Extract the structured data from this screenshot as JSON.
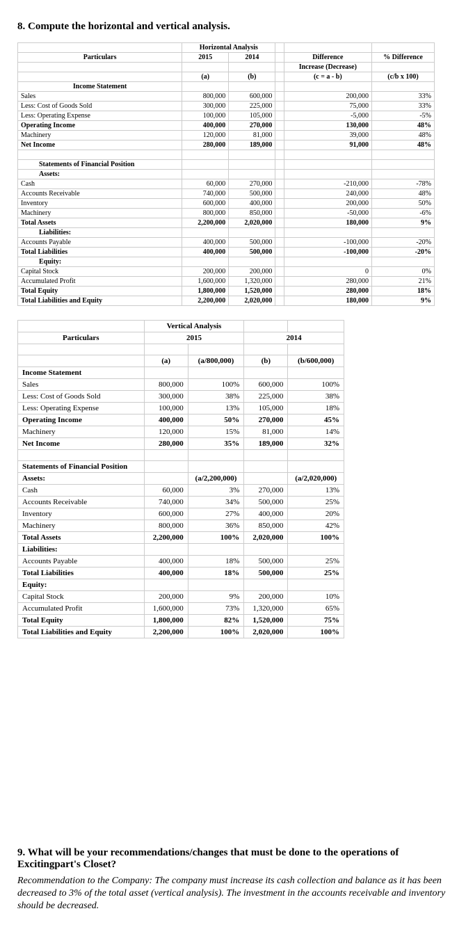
{
  "q8": {
    "title": "8. Compute the horizontal and vertical analysis.",
    "horizontal": {
      "headers": {
        "group": "Horizontal Analysis",
        "particulars": "Particulars",
        "y2015": "2015",
        "y2014": "2014",
        "diff": "Difference",
        "pctdiff": "% Difference",
        "incdec": "Increase (Decrease)",
        "a": "(a)",
        "b": "(b)",
        "cab": "(c = a - b)",
        "cb100": "(c/b x 100)"
      },
      "sections": {
        "income": "Income Statement",
        "sfp": "Statements of Financial Position",
        "assets": "Assets:",
        "liab": "Liabilities:",
        "equity": "Equity:"
      },
      "rows": [
        {
          "l": "Sales",
          "a": "800,000",
          "b": "600,000",
          "c": "200,000",
          "p": "33%"
        },
        {
          "l": "Less: Cost of Goods Sold",
          "a": "300,000",
          "b": "225,000",
          "c": "75,000",
          "p": "33%"
        },
        {
          "l": "Less: Operating Expense",
          "a": "100,000",
          "b": "105,000",
          "c": "-5,000",
          "p": "-5%"
        },
        {
          "l": "Operating Income",
          "a": "400,000",
          "b": "270,000",
          "c": "130,000",
          "p": "48%",
          "bold": true
        },
        {
          "l": "Machinery",
          "a": "120,000",
          "b": "81,000",
          "c": "39,000",
          "p": "48%"
        },
        {
          "l": "Net Income",
          "a": "280,000",
          "b": "189,000",
          "c": "91,000",
          "p": "48%",
          "bold": true
        }
      ],
      "assets_rows": [
        {
          "l": "Cash",
          "a": "60,000",
          "b": "270,000",
          "c": "-210,000",
          "p": "-78%"
        },
        {
          "l": "Accounts Receivable",
          "a": "740,000",
          "b": "500,000",
          "c": "240,000",
          "p": "48%"
        },
        {
          "l": "Inventory",
          "a": "600,000",
          "b": "400,000",
          "c": "200,000",
          "p": "50%"
        },
        {
          "l": "Machinery",
          "a": "800,000",
          "b": "850,000",
          "c": "-50,000",
          "p": "-6%"
        },
        {
          "l": "Total Assets",
          "a": "2,200,000",
          "b": "2,020,000",
          "c": "180,000",
          "p": "9%",
          "bold": true
        }
      ],
      "liab_rows": [
        {
          "l": "Accounts Payable",
          "a": "400,000",
          "b": "500,000",
          "c": "-100,000",
          "p": "-20%"
        },
        {
          "l": "Total Liabilities",
          "a": "400,000",
          "b": "500,000",
          "c": "-100,000",
          "p": "-20%",
          "bold": true
        }
      ],
      "eq_rows": [
        {
          "l": "Capital Stock",
          "a": "200,000",
          "b": "200,000",
          "c": "0",
          "p": "0%"
        },
        {
          "l": "Accumulated Profit",
          "a": "1,600,000",
          "b": "1,320,000",
          "c": "280,000",
          "p": "21%"
        },
        {
          "l": "Total Equity",
          "a": "1,800,000",
          "b": "1,520,000",
          "c": "280,000",
          "p": "18%",
          "bold": true
        },
        {
          "l": "Total Liabilities and Equity",
          "a": "2,200,000",
          "b": "2,020,000",
          "c": "180,000",
          "p": "9%",
          "bold": true
        }
      ]
    },
    "vertical": {
      "headers": {
        "group": "Vertical Analysis",
        "particulars": "Particulars",
        "y2015": "2015",
        "y2014": "2014",
        "a": "(a)",
        "a800": "(a/800,000)",
        "b": "(b)",
        "b600": "(b/600,000)",
        "a22": "(a/2,200,000)",
        "a202": "(a/2,020,000)"
      },
      "sections": {
        "income": "Income Statement",
        "sfp": "Statements of Financial Position",
        "assets": "Assets:",
        "liab": "Liabilities:",
        "equity": "Equity:"
      },
      "income_rows": [
        {
          "l": "Sales",
          "a": "800,000",
          "ap": "100%",
          "b": "600,000",
          "bp": "100%"
        },
        {
          "l": "Less: Cost of Goods Sold",
          "a": "300,000",
          "ap": "38%",
          "b": "225,000",
          "bp": "38%"
        },
        {
          "l": "Less: Operating Expense",
          "a": "100,000",
          "ap": "13%",
          "b": "105,000",
          "bp": "18%"
        },
        {
          "l": "Operating Income",
          "a": "400,000",
          "ap": "50%",
          "b": "270,000",
          "bp": "45%",
          "bold": true
        },
        {
          "l": "Machinery",
          "a": "120,000",
          "ap": "15%",
          "b": "81,000",
          "bp": "14%"
        },
        {
          "l": "Net Income",
          "a": "280,000",
          "ap": "35%",
          "b": "189,000",
          "bp": "32%",
          "bold": true
        }
      ],
      "assets_rows": [
        {
          "l": "Cash",
          "a": "60,000",
          "ap": "3%",
          "b": "270,000",
          "bp": "13%"
        },
        {
          "l": "Accounts Receivable",
          "a": "740,000",
          "ap": "34%",
          "b": "500,000",
          "bp": "25%"
        },
        {
          "l": "Inventory",
          "a": "600,000",
          "ap": "27%",
          "b": "400,000",
          "bp": "20%"
        },
        {
          "l": "Machinery",
          "a": "800,000",
          "ap": "36%",
          "b": "850,000",
          "bp": "42%"
        },
        {
          "l": "Total Assets",
          "a": "2,200,000",
          "ap": "100%",
          "b": "2,020,000",
          "bp": "100%",
          "bold": true
        }
      ],
      "liab_rows": [
        {
          "l": "Accounts Payable",
          "a": "400,000",
          "ap": "18%",
          "b": "500,000",
          "bp": "25%"
        },
        {
          "l": "Total Liabilities",
          "a": "400,000",
          "ap": "18%",
          "b": "500,000",
          "bp": "25%",
          "bold": true
        }
      ],
      "eq_rows": [
        {
          "l": "Capital Stock",
          "a": "200,000",
          "ap": "9%",
          "b": "200,000",
          "bp": "10%"
        },
        {
          "l": "Accumulated Profit",
          "a": "1,600,000",
          "ap": "73%",
          "b": "1,320,000",
          "bp": "65%"
        },
        {
          "l": "Total Equity",
          "a": "1,800,000",
          "ap": "82%",
          "b": "1,520,000",
          "bp": "75%",
          "bold": true
        },
        {
          "l": "Total Liabilities and Equity",
          "a": "2,200,000",
          "ap": "100%",
          "b": "2,020,000",
          "bp": "100%",
          "bold": true
        }
      ]
    }
  },
  "q9": {
    "title": "9. What will be your recommendations/changes that must be done to the operations of Excitingpart's Closet?",
    "body": "Recommendation to the Company: The company must increase its cash collection and balance as it has been decreased to 3% of the total asset (vertical analysis). The investment in the accounts receivable and inventory should be decreased."
  }
}
